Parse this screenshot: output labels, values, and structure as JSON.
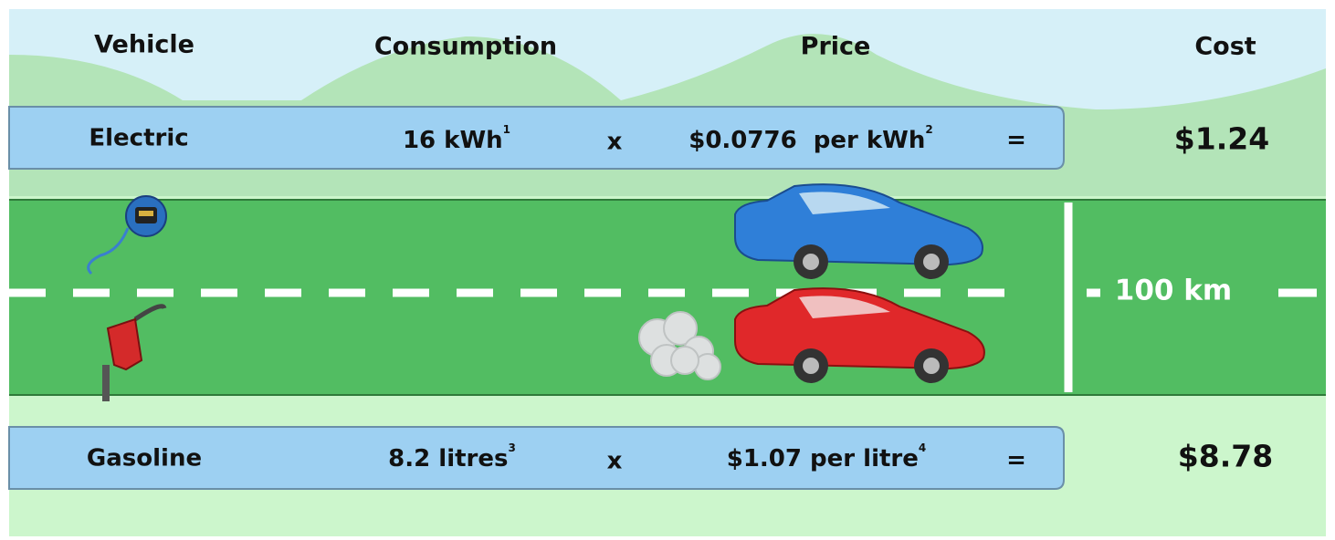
{
  "header": {
    "columns": [
      "Vehicle",
      "Consumption",
      "Price",
      "Cost"
    ]
  },
  "rows": [
    {
      "vehicle": "Electric",
      "consumption": "16 kWh",
      "consumption_note": "1",
      "operator": "x",
      "price": "$0.0776  per kWh",
      "price_note": "2",
      "equals": "=",
      "cost": "$1.24"
    },
    {
      "vehicle": "Gasoline",
      "consumption": "8.2 litres",
      "consumption_note": "3",
      "operator": "x",
      "price": "$1.07 per litre",
      "price_note": "4",
      "equals": "=",
      "cost": "$8.78"
    }
  ],
  "road": {
    "distance": "100 km"
  }
}
